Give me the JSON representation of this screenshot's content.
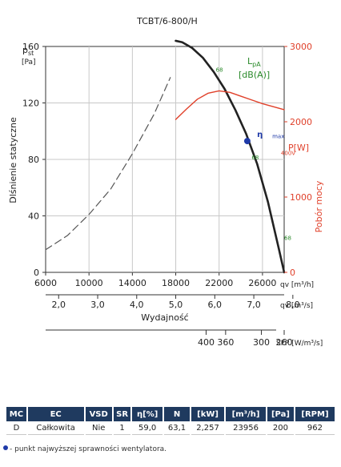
{
  "chart_data": {
    "type": "line",
    "title": "TCBT/6-800/H",
    "ylabel_symbol": "p",
    "ylabel_sub": "st",
    "ylabel_unit": "[Pa]",
    "ylabel_text": "Dlśnienie statyczne",
    "ylim": [
      0,
      160
    ],
    "yticks": [
      "0",
      "40",
      "80",
      "120",
      "160"
    ],
    "y2label": "P[W]",
    "y2label_text": "Pobór mocy",
    "y2lim": [
      0,
      3000
    ],
    "y2ticks": [
      "0",
      "1000",
      "2000",
      "3000"
    ],
    "xlim": [
      6000,
      28000
    ],
    "xticks_m3h": [
      "6000",
      "10000",
      "14000",
      "18000",
      "22000",
      "26000"
    ],
    "xunit_m3h": "q",
    "xunit_m3h_tail": "v [m³/h]",
    "xticks_m3s": [
      "2,0",
      "3,0",
      "4,0",
      "5,0",
      "6,0",
      "7,0",
      "8,0"
    ],
    "xunit_m3s": "q",
    "xunit_m3s_tail": "v [m³/s]",
    "xlabel": "Wydajność",
    "sfp_ticks": [
      "400",
      "360",
      "300",
      "260"
    ],
    "sfp_label": "SFP [W/m³/s]",
    "legend_title": "L",
    "legend_sub": "pA",
    "legend_unit": "[dB(A)]",
    "series": [
      {
        "role": "pressure-dashed",
        "color": "#555555",
        "x": [
          6000,
          8000,
          10000,
          12000,
          14000,
          16000,
          17500
        ],
        "y": [
          16,
          26,
          41,
          59,
          84,
          112,
          138
        ]
      },
      {
        "role": "pressure-solid",
        "color": "#222222",
        "x": [
          18000,
          18600,
          19500,
          20500,
          21500,
          22500,
          23500,
          24500,
          25500,
          26500,
          27500,
          28000
        ],
        "y": [
          164,
          163,
          159,
          152,
          142,
          130,
          115,
          98,
          77,
          50,
          17,
          0
        ]
      },
      {
        "role": "power",
        "color": "#e0402a",
        "x": [
          18000,
          19000,
          20000,
          21000,
          22000,
          23000,
          24000,
          25000,
          26000,
          27000,
          28000
        ],
        "y": [
          2030,
          2170,
          2300,
          2380,
          2410,
          2390,
          2340,
          2290,
          2240,
          2200,
          2160
        ]
      }
    ],
    "annotations": [
      {
        "text": "68",
        "x": 21700,
        "y": 142,
        "color": "#2a8a2a"
      },
      {
        "text": "68",
        "x": 25000,
        "y": 80,
        "color": "#2a8a2a"
      },
      {
        "text": "68",
        "x": 28000,
        "y": 23,
        "color": "#2a8a2a"
      },
      {
        "text": "η",
        "x": 25500,
        "y": 96,
        "color": "#1f3aa8"
      },
      {
        "text": "max",
        "x": 26900,
        "y": 95,
        "color": "#1f3aa8"
      },
      {
        "text": "400V",
        "x": 27700,
        "y": 83,
        "color": "#e0402a"
      }
    ],
    "eta_point": {
      "x": 24600,
      "y": 93
    }
  },
  "table": {
    "headers": [
      "MC",
      "EC",
      "VSD",
      "SR",
      "η[%]",
      "N",
      "[kW]",
      "[m³/h]",
      "[Pa]",
      "[RPM]"
    ],
    "row": [
      "D",
      "Całkowita",
      "Nie",
      "1",
      "59,0",
      "63,1",
      "2,257",
      "23956",
      "200",
      "962"
    ]
  },
  "footnote": "- punkt najwyższej sprawności wentylatora.",
  "colors": {
    "header_bg": "#1f3a5f",
    "green": "#2a8a2a",
    "red": "#e0402a",
    "blue": "#1f3aa8"
  }
}
